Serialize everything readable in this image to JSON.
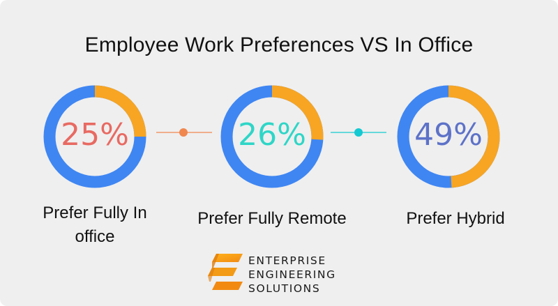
{
  "page": {
    "title": "Employee Work Preferences VS In Office"
  },
  "colors": {
    "ring_blue": "#3f86f2",
    "ring_orange": "#f7a523",
    "pct_1": "#e86a62",
    "pct_2": "#2ed6c7",
    "pct_3": "#5d72c8",
    "connector_1": "#f0874f",
    "connector_2": "#14c9d1"
  },
  "chart_data": {
    "type": "pie",
    "title": "Employee Work Preferences VS In Office",
    "series": [
      {
        "value": 25,
        "display": "25%",
        "label": "Prefer  Fully In office",
        "label_lines": [
          "Prefer  Fully In",
          "office"
        ]
      },
      {
        "value": 26,
        "display": "26%",
        "label": "Prefer Fully Remote",
        "label_lines": [
          "Prefer Fully Remote"
        ]
      },
      {
        "value": 49,
        "display": "49%",
        "label": "Prefer Hybrid",
        "label_lines": [
          "Prefer Hybrid"
        ]
      }
    ]
  },
  "brand": {
    "icon": "enterprise-engineering-solutions-logo-icon",
    "lines": [
      "ENTERPRISE",
      "ENGINEERING",
      "SOLUTIONS"
    ]
  }
}
